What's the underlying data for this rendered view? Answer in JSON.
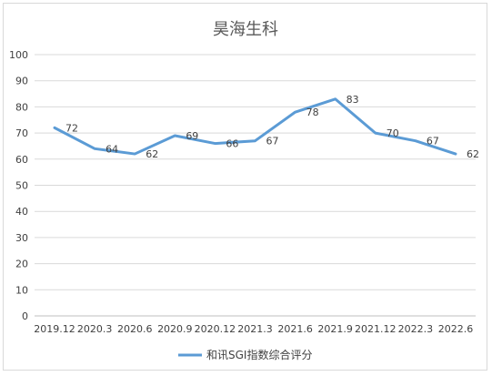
{
  "chart_data": {
    "type": "line",
    "title": "昊海生科",
    "categories": [
      "2019.12",
      "2020.3",
      "2020.6",
      "2020.9",
      "2020.12",
      "2021.3",
      "2021.6",
      "2021.9",
      "2021.12",
      "2022.3",
      "2022.6"
    ],
    "series": [
      {
        "name": "和讯SGI指数综合评分",
        "values": [
          72,
          64,
          62,
          69,
          66,
          67,
          78,
          83,
          70,
          67,
          62
        ],
        "color": "#5b9bd5"
      }
    ],
    "yticks": [
      0,
      10,
      20,
      30,
      40,
      50,
      60,
      70,
      80,
      90,
      100
    ],
    "ylim": [
      0,
      100
    ],
    "grid": true,
    "legend": "bottom"
  }
}
